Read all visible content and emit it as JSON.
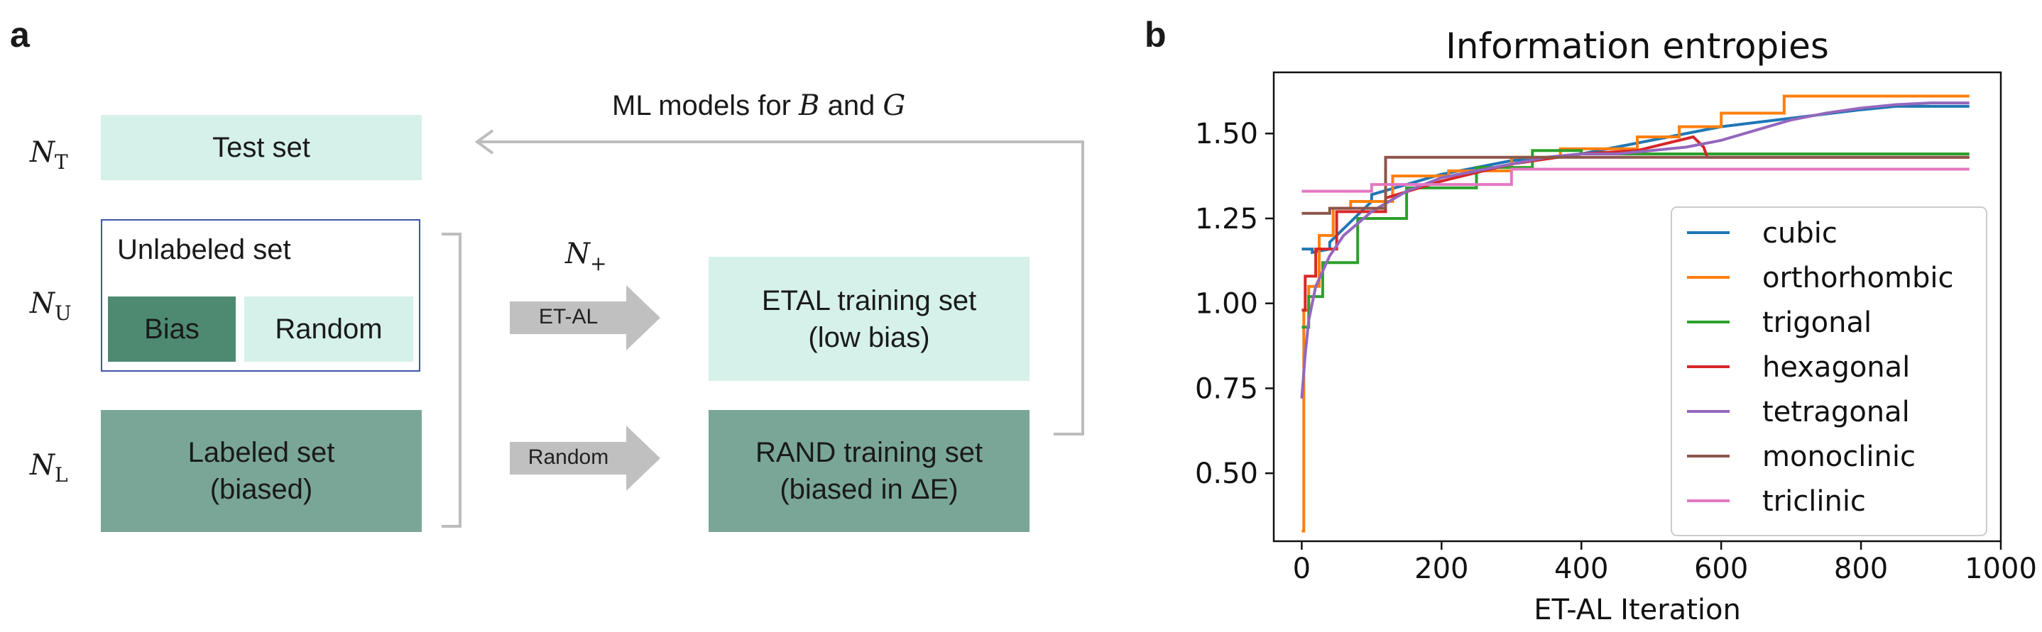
{
  "panel_a": {
    "letter": "a",
    "n_t": {
      "sym": "N",
      "sub": "T"
    },
    "n_u": {
      "sym": "N",
      "sub": "U"
    },
    "n_l": {
      "sym": "N",
      "sub": "L"
    },
    "n_plus": {
      "sym": "N",
      "sub": "+"
    },
    "test_set": "Test set",
    "unlabeled_set": "Unlabeled set",
    "bias": "Bias",
    "random": "Random",
    "labeled_set_line1": "Labeled set",
    "labeled_set_line2": "(biased)",
    "ml_models_prefix": "ML models for ",
    "ml_b": "B",
    "ml_and": " and ",
    "ml_g": "G",
    "etal_arrow": "ET-AL",
    "random_arrow": "Random",
    "etal_train_line1": "ETAL training set",
    "etal_train_line2": "(low bias)",
    "rand_train_line1": "RAND training set",
    "rand_train_line2": "(biased in ΔE)"
  },
  "panel_b": {
    "letter": "b"
  },
  "chart_data": {
    "type": "line",
    "title": "Information entropies",
    "xlabel": "ET-AL Iteration",
    "ylabel": "",
    "xlim": [
      -40,
      1000
    ],
    "ylim": [
      0.3,
      1.68
    ],
    "xticks": [
      0,
      200,
      400,
      600,
      800,
      1000
    ],
    "xtick_labels": [
      "0",
      "200",
      "400",
      "600",
      "800",
      "1000"
    ],
    "yticks": [
      0.5,
      0.75,
      1.0,
      1.25,
      1.5
    ],
    "ytick_labels": [
      "0.50",
      "0.75",
      "1.00",
      "1.25",
      "1.50"
    ],
    "legend_position": "center-right",
    "series": [
      {
        "name": "cubic",
        "color": "#1f77b4",
        "x": [
          0,
          15,
          15,
          40,
          40,
          100,
          100,
          200,
          300,
          400,
          600,
          800,
          850,
          955
        ],
        "y": [
          1.16,
          1.16,
          1.15,
          1.16,
          1.18,
          1.3,
          1.32,
          1.38,
          1.42,
          1.44,
          1.52,
          1.57,
          1.58,
          1.58
        ]
      },
      {
        "name": "orthorhombic",
        "color": "#ff7f0e",
        "x": [
          0,
          3,
          3,
          10,
          10,
          25,
          25,
          45,
          45,
          70,
          70,
          130,
          130,
          210,
          210,
          300,
          300,
          370,
          370,
          480,
          480,
          540,
          540,
          600,
          600,
          690,
          690,
          955
        ],
        "y": [
          0.33,
          0.33,
          0.98,
          0.98,
          1.05,
          1.05,
          1.2,
          1.2,
          1.28,
          1.28,
          1.3,
          1.3,
          1.375,
          1.375,
          1.39,
          1.39,
          1.43,
          1.43,
          1.455,
          1.455,
          1.49,
          1.49,
          1.52,
          1.52,
          1.56,
          1.56,
          1.61,
          1.61
        ]
      },
      {
        "name": "trigonal",
        "color": "#2ca02c",
        "x": [
          0,
          10,
          10,
          30,
          30,
          80,
          80,
          150,
          150,
          250,
          250,
          330,
          330,
          400,
          400,
          955
        ],
        "y": [
          0.93,
          0.93,
          1.02,
          1.02,
          1.12,
          1.12,
          1.25,
          1.25,
          1.34,
          1.34,
          1.4,
          1.4,
          1.45,
          1.45,
          1.44,
          1.44
        ]
      },
      {
        "name": "hexagonal",
        "color": "#d62728",
        "x": [
          0,
          5,
          5,
          20,
          20,
          50,
          50,
          120,
          120,
          200,
          300,
          400,
          480,
          520,
          560,
          575,
          580,
          955
        ],
        "y": [
          0.98,
          0.98,
          1.08,
          1.08,
          1.16,
          1.16,
          1.27,
          1.27,
          1.31,
          1.36,
          1.41,
          1.44,
          1.45,
          1.47,
          1.49,
          1.46,
          1.43,
          1.43
        ]
      },
      {
        "name": "tetragonal",
        "color": "#9467bd",
        "x": [
          0,
          5,
          10,
          20,
          40,
          60,
          100,
          150,
          200,
          250,
          300,
          350,
          400,
          450,
          500,
          550,
          600,
          650,
          700,
          750,
          800,
          850,
          900,
          955
        ],
        "y": [
          0.72,
          0.85,
          0.95,
          1.05,
          1.14,
          1.2,
          1.27,
          1.33,
          1.37,
          1.39,
          1.41,
          1.43,
          1.44,
          1.44,
          1.45,
          1.46,
          1.48,
          1.51,
          1.54,
          1.56,
          1.575,
          1.585,
          1.59,
          1.59
        ]
      },
      {
        "name": "monoclinic",
        "color": "#8c564b",
        "x": [
          0,
          40,
          40,
          120,
          120,
          955
        ],
        "y": [
          1.265,
          1.265,
          1.28,
          1.28,
          1.43,
          1.43
        ]
      },
      {
        "name": "triclinic",
        "color": "#e377c2",
        "x": [
          0,
          100,
          100,
          300,
          300,
          955
        ],
        "y": [
          1.33,
          1.33,
          1.35,
          1.35,
          1.395,
          1.395
        ]
      }
    ]
  }
}
